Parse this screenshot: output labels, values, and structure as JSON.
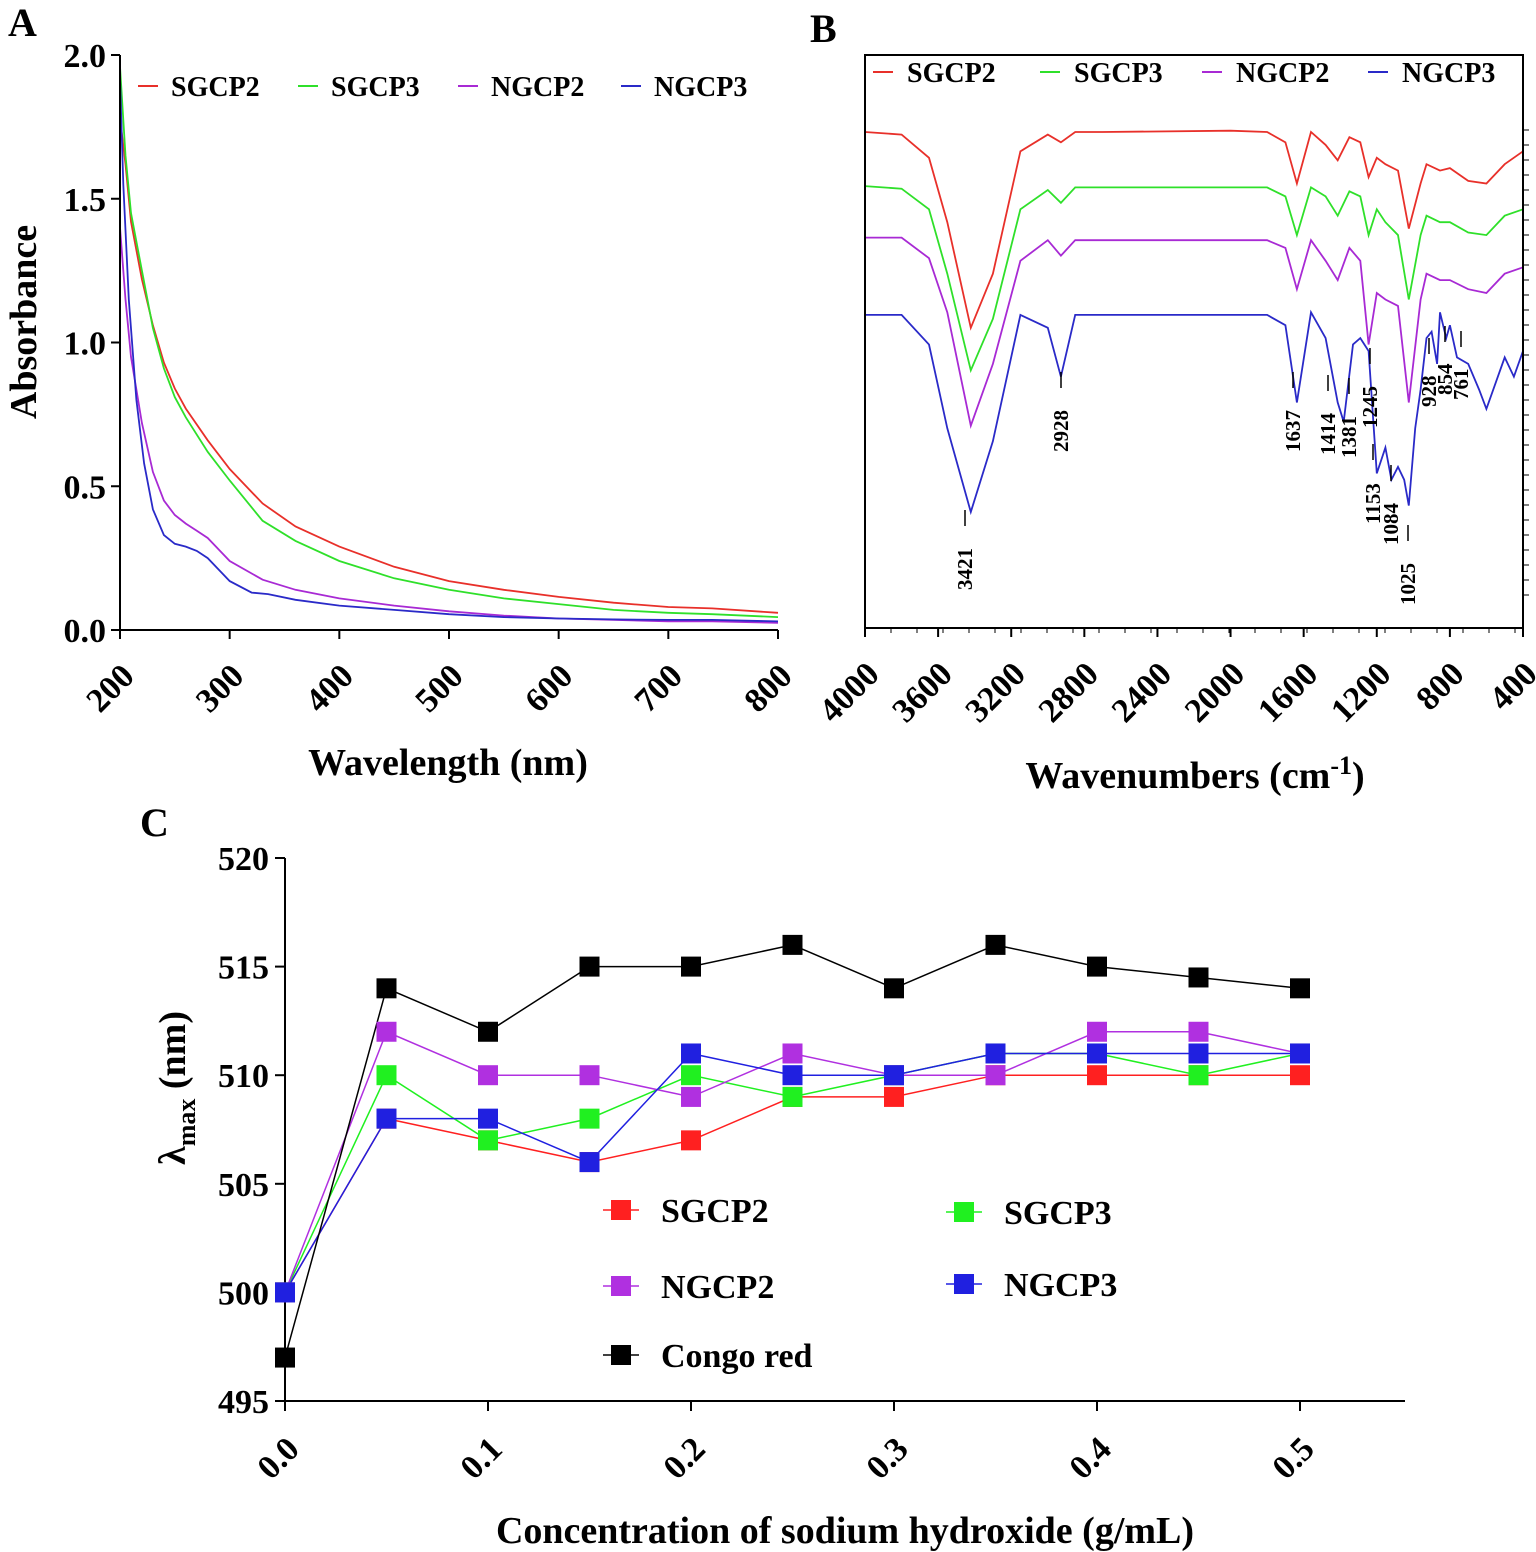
{
  "chart_data": [
    {
      "panel": "A",
      "type": "line",
      "xlabel": "Wavelength (nm)",
      "ylabel": "Absorbance",
      "xlim": [
        200,
        800
      ],
      "ylim": [
        0.0,
        2.0
      ],
      "xticks": [
        "200",
        "300",
        "400",
        "500",
        "600",
        "700",
        "800"
      ],
      "yticks": [
        "0.0",
        "0.5",
        "1.0",
        "1.5",
        "2.0"
      ],
      "legend": "top",
      "series": [
        {
          "name": "SGCP2",
          "color": "#e8302a",
          "x": [
            200,
            205,
            210,
            220,
            230,
            240,
            250,
            260,
            280,
            300,
            330,
            360,
            400,
            450,
            500,
            550,
            600,
            650,
            700,
            740,
            800
          ],
          "y": [
            1.78,
            1.62,
            1.42,
            1.22,
            1.06,
            0.93,
            0.84,
            0.77,
            0.66,
            0.56,
            0.44,
            0.36,
            0.29,
            0.22,
            0.17,
            0.14,
            0.115,
            0.095,
            0.08,
            0.075,
            0.06
          ]
        },
        {
          "name": "SGCP3",
          "color": "#2fe02a",
          "x": [
            200,
            205,
            210,
            220,
            230,
            240,
            250,
            260,
            280,
            300,
            330,
            360,
            400,
            450,
            500,
            550,
            600,
            650,
            700,
            740,
            800
          ],
          "y": [
            1.96,
            1.65,
            1.45,
            1.25,
            1.05,
            0.91,
            0.81,
            0.74,
            0.62,
            0.52,
            0.38,
            0.31,
            0.24,
            0.18,
            0.14,
            0.11,
            0.09,
            0.07,
            0.06,
            0.055,
            0.045
          ]
        },
        {
          "name": "NGCP2",
          "color": "#a82ad4",
          "x": [
            200,
            205,
            210,
            220,
            230,
            240,
            250,
            260,
            270,
            280,
            290,
            300,
            330,
            360,
            400,
            450,
            500,
            550,
            600,
            650,
            700,
            740,
            800
          ],
          "y": [
            1.4,
            1.15,
            0.95,
            0.72,
            0.55,
            0.45,
            0.4,
            0.37,
            0.345,
            0.32,
            0.28,
            0.24,
            0.175,
            0.14,
            0.11,
            0.085,
            0.065,
            0.05,
            0.04,
            0.035,
            0.03,
            0.03,
            0.025
          ]
        },
        {
          "name": "NGCP3",
          "color": "#2a2ac8",
          "x": [
            200,
            203,
            208,
            215,
            222,
            230,
            240,
            250,
            260,
            270,
            280,
            290,
            300,
            320,
            335,
            360,
            400,
            450,
            500,
            550,
            600,
            650,
            700,
            740,
            800
          ],
          "y": [
            1.92,
            1.55,
            1.15,
            0.8,
            0.58,
            0.42,
            0.33,
            0.3,
            0.29,
            0.275,
            0.25,
            0.21,
            0.17,
            0.13,
            0.125,
            0.105,
            0.085,
            0.07,
            0.055,
            0.045,
            0.04,
            0.037,
            0.035,
            0.035,
            0.03
          ]
        }
      ]
    },
    {
      "panel": "B",
      "type": "line",
      "xlabel": "Wavenumbers (cm",
      "xlabel_sup": "-1",
      "xlabel_end": ")",
      "xlim": [
        4000,
        400
      ],
      "ylim": [
        -1.4,
        1.7
      ],
      "xticks": [
        "4000",
        "3600",
        "3200",
        "2800",
        "2400",
        "2000",
        "1600",
        "1200",
        "800",
        "400"
      ],
      "legend": "top",
      "series": [
        {
          "name": "SGCP2",
          "color": "#e8302a",
          "x": [
            4000,
            3800,
            3650,
            3550,
            3421,
            3300,
            3150,
            3000,
            2928,
            2850,
            2700,
            2000,
            1800,
            1700,
            1637,
            1560,
            1480,
            1414,
            1350,
            1290,
            1245,
            1200,
            1153,
            1084,
            1025,
            960,
            928,
            854,
            800,
            700,
            600,
            500,
            400
          ],
          "y": [
            1.7,
            1.68,
            1.5,
            1.0,
            0.18,
            0.6,
            1.55,
            1.68,
            1.62,
            1.7,
            1.7,
            1.71,
            1.7,
            1.62,
            1.3,
            1.7,
            1.6,
            1.48,
            1.66,
            1.62,
            1.35,
            1.5,
            1.45,
            1.4,
            0.95,
            1.3,
            1.45,
            1.4,
            1.42,
            1.32,
            1.3,
            1.45,
            1.55
          ]
        },
        {
          "name": "SGCP3",
          "color": "#2fe02a",
          "x": [
            4000,
            3800,
            3650,
            3550,
            3421,
            3300,
            3150,
            3000,
            2928,
            2850,
            2700,
            2000,
            1800,
            1700,
            1637,
            1560,
            1480,
            1414,
            1350,
            1290,
            1245,
            1200,
            1153,
            1084,
            1025,
            960,
            928,
            854,
            800,
            700,
            600,
            500,
            400
          ],
          "y": [
            1.28,
            1.26,
            1.1,
            0.6,
            -0.15,
            0.25,
            1.1,
            1.25,
            1.15,
            1.27,
            1.27,
            1.27,
            1.27,
            1.2,
            0.9,
            1.27,
            1.2,
            1.05,
            1.24,
            1.2,
            0.9,
            1.1,
            1.0,
            0.9,
            0.4,
            0.9,
            1.05,
            1.0,
            1.0,
            0.92,
            0.9,
            1.05,
            1.1
          ]
        },
        {
          "name": "NGCP2",
          "color": "#a82ad4",
          "x": [
            4000,
            3800,
            3650,
            3550,
            3421,
            3300,
            3150,
            3000,
            2928,
            2850,
            2700,
            2000,
            1800,
            1700,
            1637,
            1560,
            1480,
            1414,
            1350,
            1290,
            1245,
            1200,
            1153,
            1084,
            1025,
            960,
            928,
            854,
            800,
            700,
            600,
            500,
            400
          ],
          "y": [
            0.88,
            0.88,
            0.72,
            0.3,
            -0.58,
            -0.1,
            0.7,
            0.86,
            0.74,
            0.86,
            0.86,
            0.86,
            0.86,
            0.8,
            0.48,
            0.86,
            0.7,
            0.55,
            0.8,
            0.7,
            0.05,
            0.45,
            0.4,
            0.35,
            -0.4,
            0.4,
            0.6,
            0.55,
            0.55,
            0.48,
            0.45,
            0.6,
            0.65
          ]
        },
        {
          "name": "NGCP3",
          "color": "#2a2ac8",
          "x": [
            4000,
            3800,
            3650,
            3550,
            3421,
            3300,
            3150,
            3000,
            2928,
            2850,
            2700,
            2000,
            1800,
            1700,
            1637,
            1560,
            1480,
            1414,
            1381,
            1330,
            1290,
            1245,
            1200,
            1153,
            1120,
            1084,
            1050,
            1025,
            990,
            960,
            928,
            900,
            870,
            854,
            820,
            800,
            761,
            700,
            640,
            600,
            500,
            450,
            400
          ],
          "y": [
            0.28,
            0.28,
            0.05,
            -0.6,
            -1.25,
            -0.7,
            0.28,
            0.18,
            -0.2,
            0.28,
            0.28,
            0.28,
            0.28,
            0.2,
            -0.4,
            0.3,
            0.1,
            -0.4,
            -0.55,
            0.05,
            0.1,
            0.0,
            -0.95,
            -0.75,
            -1.0,
            -0.9,
            -1.0,
            -1.2,
            -0.6,
            -0.3,
            0.1,
            0.15,
            -0.1,
            0.3,
            0.1,
            0.2,
            -0.05,
            -0.1,
            -0.3,
            -0.45,
            -0.05,
            -0.2,
            0.0
          ]
        }
      ],
      "annotations": [
        "3421",
        "2928",
        "1637",
        "1414",
        "1381",
        "1245",
        "1153",
        "1084",
        "1025",
        "928",
        "854",
        "761"
      ]
    },
    {
      "panel": "C",
      "type": "line",
      "xlabel": "Concentration of sodium hydroxide (g/mL)",
      "ylabel": "λ",
      "ylabel_sub": "max",
      "ylabel_end": " (nm)",
      "xlim": [
        0.0,
        0.55
      ],
      "ylim": [
        495,
        520
      ],
      "xticks": [
        "0.0",
        "0.1",
        "0.2",
        "0.3",
        "0.4",
        "0.5"
      ],
      "yticks": [
        "495",
        "500",
        "505",
        "510",
        "515",
        "520"
      ],
      "legend": "center",
      "x": [
        0.0,
        0.05,
        0.1,
        0.15,
        0.2,
        0.25,
        0.3,
        0.35,
        0.4,
        0.45,
        0.5
      ],
      "series": [
        {
          "name": "SGCP2",
          "color": "#ff2020",
          "values": [
            500,
            508,
            507,
            506,
            507,
            509,
            509,
            510,
            510,
            510,
            510
          ]
        },
        {
          "name": "SGCP3",
          "color": "#20f020",
          "values": [
            500,
            510,
            507,
            508,
            510,
            509,
            510,
            511,
            511,
            510,
            511
          ]
        },
        {
          "name": "NGCP2",
          "color": "#b030e0",
          "values": [
            500,
            512,
            510,
            510,
            509,
            511,
            510,
            510,
            512,
            512,
            511
          ]
        },
        {
          "name": "NGCP3",
          "color": "#2020e0",
          "values": [
            500,
            508,
            508,
            506,
            511,
            510,
            510,
            511,
            511,
            511,
            511
          ]
        },
        {
          "name": "Congo red",
          "color": "#000000",
          "values": [
            497,
            514,
            512,
            515,
            515,
            516,
            514,
            516,
            515,
            514.5,
            514
          ]
        }
      ]
    }
  ],
  "panels": {
    "a": "A",
    "b": "B",
    "c": "C"
  }
}
